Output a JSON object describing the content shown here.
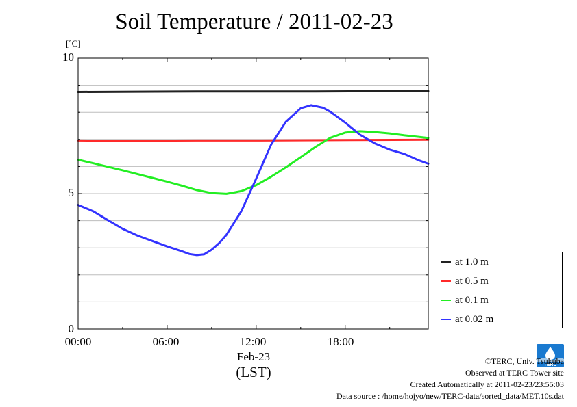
{
  "chart_data": {
    "type": "line",
    "title": "Soil Temperature / 2011-02-23",
    "ylabel": "[˚C]",
    "xlabel": "Feb-23",
    "xlabel2": "(LST)",
    "xlim": [
      0,
      23.6
    ],
    "ylim": [
      0,
      10
    ],
    "x_ticks": [
      {
        "value": 0,
        "label": "00:00"
      },
      {
        "value": 6,
        "label": "06:00"
      },
      {
        "value": 12,
        "label": "12:00"
      },
      {
        "value": 18,
        "label": "18:00"
      }
    ],
    "y_ticks": [
      {
        "value": 0,
        "label": "0"
      },
      {
        "value": 5,
        "label": "5"
      },
      {
        "value": 10,
        "label": "10"
      }
    ],
    "y_grid": [
      1,
      2,
      3,
      4,
      5,
      6,
      7,
      8,
      9
    ],
    "grid": true,
    "legend_position": "right-bottom",
    "series": [
      {
        "name": "at 1.0 m",
        "color": "#222222",
        "x": [
          0,
          4,
          8,
          12,
          16,
          20,
          23.6
        ],
        "y": [
          8.75,
          8.76,
          8.77,
          8.77,
          8.77,
          8.78,
          8.78
        ]
      },
      {
        "name": "at 0.5 m",
        "color": "#ff2a2a",
        "x": [
          0,
          4,
          8,
          12,
          16,
          20,
          23.6
        ],
        "y": [
          6.96,
          6.95,
          6.96,
          6.96,
          6.97,
          6.98,
          6.99
        ]
      },
      {
        "name": "at 0.1 m",
        "color": "#22ee22",
        "x": [
          0,
          1,
          2,
          3,
          4,
          5,
          6,
          7,
          8,
          9,
          10,
          11,
          12,
          13,
          14,
          15,
          16,
          17,
          18,
          19,
          20,
          21,
          22,
          23,
          23.6
        ],
        "y": [
          6.25,
          6.12,
          5.99,
          5.86,
          5.72,
          5.58,
          5.44,
          5.29,
          5.13,
          5.02,
          4.99,
          5.09,
          5.31,
          5.62,
          5.97,
          6.34,
          6.72,
          7.06,
          7.25,
          7.3,
          7.27,
          7.22,
          7.15,
          7.09,
          7.05
        ]
      },
      {
        "name": "at 0.02 m",
        "color": "#3333ff",
        "x": [
          0,
          1,
          2,
          3,
          4,
          5,
          6,
          7,
          7.5,
          8,
          8.5,
          9,
          9.5,
          10,
          11,
          12,
          13,
          14,
          15,
          15.7,
          16.5,
          17,
          18,
          19,
          20,
          21,
          22,
          23,
          23.6
        ],
        "y": [
          4.58,
          4.35,
          4.02,
          3.7,
          3.45,
          3.25,
          3.05,
          2.87,
          2.77,
          2.73,
          2.76,
          2.93,
          3.17,
          3.48,
          4.35,
          5.55,
          6.8,
          7.65,
          8.15,
          8.26,
          8.17,
          8.02,
          7.62,
          7.17,
          6.85,
          6.62,
          6.46,
          6.22,
          6.1
        ]
      }
    ]
  },
  "footer": {
    "copyright": "©TERC, Univ. Tsukuba",
    "observed": "Observed at TERC Tower site",
    "created": "Created Automatically at 2011-02-23/23:55:03",
    "source": "Data source : /home/hojyo/new/TERC-data/sorted_data/MET.10s.dat"
  },
  "logo": {
    "text": "TERC",
    "color": "#1a7ad0"
  }
}
